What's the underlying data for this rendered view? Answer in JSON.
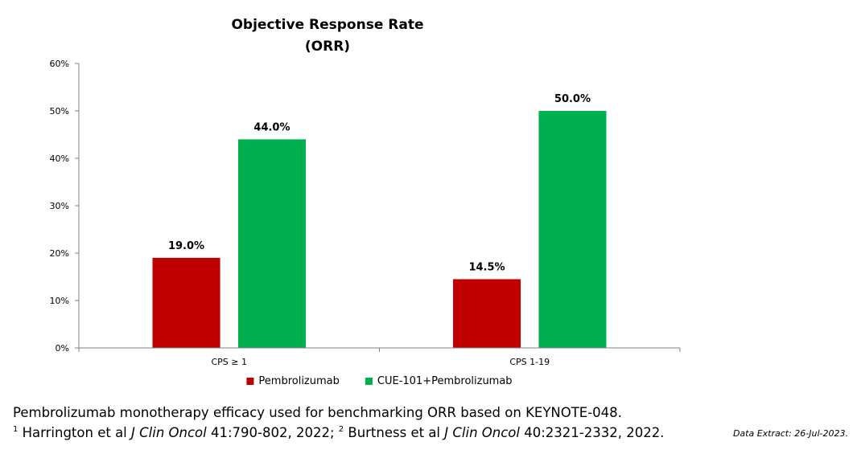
{
  "chart_data": {
    "type": "bar",
    "title_lines": [
      "Objective Response Rate",
      "(ORR)"
    ],
    "categories": [
      "CPS ≥ 1",
      "CPS 1-19"
    ],
    "series": [
      {
        "name": "Pembrolizumab",
        "color": "#C00000",
        "values": [
          19.0,
          14.5
        ],
        "labels": [
          "19.0%",
          "14.5%"
        ]
      },
      {
        "name": "CUE-101+Pembrolizumab",
        "color": "#00B050",
        "values": [
          44.0,
          50.0
        ],
        "labels": [
          "44.0%",
          "50.0%"
        ]
      }
    ],
    "ylim": [
      0,
      60
    ],
    "yticks": [
      0,
      10,
      20,
      30,
      40,
      50,
      60
    ],
    "ytick_labels": [
      "0%",
      "10%",
      "20%",
      "30%",
      "40%",
      "50%",
      "60%"
    ],
    "xlabel": "",
    "ylabel": "",
    "grid": false,
    "legend_position": "bottom"
  },
  "footnotes": {
    "line1": "Pembrolizumab monotherapy efficacy used for benchmarking ORR based on KEYNOTE-048.",
    "ref1_num": "1",
    "ref1_pre": " Harrington et al ",
    "ref1_journal": "J Clin Oncol",
    "ref1_post": " 41:790-802, 2022; ",
    "ref2_num": "2",
    "ref2_pre": " Burtness et al ",
    "ref2_journal": "J Clin Oncol",
    "ref2_post": " 40:2321-2332, 2022.",
    "data_extract": "Data Extract: 26-Jul-2023."
  }
}
